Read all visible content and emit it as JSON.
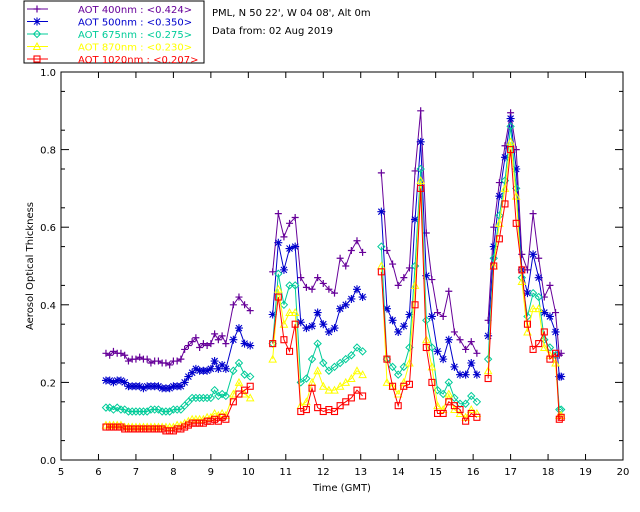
{
  "header": {
    "site_line": "PML, N 50 22', W 04 08', Alt 0m",
    "date_line": "Data from: 02 Aug 2019"
  },
  "colors": {
    "axis": "#000000",
    "legend_border": "#000000"
  },
  "chart_data": {
    "type": "line",
    "title": "",
    "xlabel": "Time (GMT)",
    "ylabel": "Aerosol Optical Thickness",
    "xlim": [
      5,
      20
    ],
    "ylim": [
      0.0,
      1.0
    ],
    "xticks": [
      "5",
      "6",
      "7",
      "8",
      "9",
      "10",
      "11",
      "12",
      "13",
      "14",
      "15",
      "16",
      "17",
      "18",
      "19",
      "20"
    ],
    "yticks": [
      "0.0",
      "0.2",
      "0.4",
      "0.6",
      "0.8",
      "1.0"
    ],
    "legend_position": "top-left",
    "x": [
      6.2,
      6.3,
      6.4,
      6.5,
      6.6,
      6.7,
      6.8,
      6.9,
      7.0,
      7.1,
      7.2,
      7.3,
      7.4,
      7.5,
      7.6,
      7.7,
      7.8,
      7.9,
      8.0,
      8.1,
      8.2,
      8.3,
      8.4,
      8.5,
      8.6,
      8.7,
      8.8,
      8.9,
      9.0,
      9.1,
      9.2,
      9.3,
      9.4,
      9.6,
      9.75,
      9.9,
      10.05,
      null,
      10.65,
      10.8,
      10.95,
      11.1,
      11.25,
      11.4,
      11.55,
      11.7,
      11.85,
      12.0,
      12.15,
      12.3,
      12.45,
      12.6,
      12.75,
      12.9,
      13.05,
      null,
      13.55,
      13.7,
      13.85,
      14.0,
      14.15,
      14.3,
      14.45,
      14.6,
      14.75,
      14.9,
      15.05,
      15.2,
      15.35,
      15.5,
      15.65,
      15.8,
      15.95,
      16.1,
      null,
      16.4,
      16.55,
      16.7,
      16.85,
      17.0,
      17.15,
      17.3,
      17.45,
      17.6,
      17.75,
      17.9,
      18.05,
      18.2,
      18.3,
      18.35
    ],
    "series": [
      {
        "name": "AOT  400nm",
        "label": "AOT  400nm : <0.424>",
        "color": "#660099",
        "marker": "plus",
        "values": [
          0.275,
          0.27,
          0.28,
          0.275,
          0.275,
          0.27,
          0.255,
          0.26,
          0.26,
          0.265,
          0.26,
          0.26,
          0.25,
          0.255,
          0.255,
          0.25,
          0.25,
          0.245,
          0.255,
          0.255,
          0.26,
          0.285,
          0.295,
          0.305,
          0.315,
          0.29,
          0.3,
          0.295,
          0.3,
          0.325,
          0.31,
          0.32,
          0.3,
          0.4,
          0.42,
          0.4,
          0.385,
          null,
          0.485,
          0.635,
          0.575,
          0.61,
          0.625,
          0.47,
          0.445,
          0.44,
          0.47,
          0.455,
          0.44,
          0.43,
          0.52,
          0.5,
          0.54,
          0.565,
          0.535,
          null,
          0.74,
          0.54,
          0.505,
          0.45,
          0.47,
          0.495,
          0.745,
          0.9,
          0.585,
          0.465,
          0.38,
          0.37,
          0.435,
          0.33,
          0.31,
          0.285,
          0.305,
          0.275,
          null,
          0.36,
          0.6,
          0.715,
          0.81,
          0.895,
          0.8,
          0.53,
          0.49,
          0.635,
          0.52,
          0.42,
          0.45,
          0.38,
          0.27,
          0.275
        ]
      },
      {
        "name": "AOT  500nm",
        "label": "AOT  500nm : <0.350>",
        "color": "#0000cc",
        "marker": "star",
        "values": [
          0.205,
          0.205,
          0.2,
          0.205,
          0.205,
          0.2,
          0.19,
          0.19,
          0.19,
          0.19,
          0.185,
          0.19,
          0.19,
          0.19,
          0.19,
          0.185,
          0.185,
          0.185,
          0.19,
          0.19,
          0.19,
          0.2,
          0.215,
          0.225,
          0.235,
          0.23,
          0.23,
          0.23,
          0.235,
          0.255,
          0.235,
          0.245,
          0.235,
          0.31,
          0.34,
          0.3,
          0.295,
          null,
          0.375,
          0.56,
          0.49,
          0.545,
          0.55,
          0.355,
          0.34,
          0.345,
          0.38,
          0.35,
          0.33,
          0.34,
          0.39,
          0.4,
          0.415,
          0.44,
          0.42,
          null,
          0.64,
          0.39,
          0.36,
          0.33,
          0.345,
          0.375,
          0.62,
          0.82,
          0.475,
          0.37,
          0.28,
          0.26,
          0.31,
          0.24,
          0.22,
          0.22,
          0.25,
          0.22,
          null,
          0.32,
          0.55,
          0.68,
          0.78,
          0.88,
          0.75,
          0.49,
          0.43,
          0.53,
          0.47,
          0.38,
          0.37,
          0.33,
          0.215,
          0.215
        ]
      },
      {
        "name": "AOT  675nm",
        "label": "AOT  675nm : <0.275>",
        "color": "#00cc99",
        "marker": "diamond",
        "values": [
          0.135,
          0.135,
          0.13,
          0.135,
          0.13,
          0.13,
          0.125,
          0.125,
          0.125,
          0.125,
          0.125,
          0.125,
          0.13,
          0.13,
          0.13,
          0.125,
          0.125,
          0.125,
          0.13,
          0.13,
          0.13,
          0.14,
          0.15,
          0.16,
          0.16,
          0.16,
          0.16,
          0.16,
          0.16,
          0.18,
          0.165,
          0.17,
          0.165,
          0.23,
          0.25,
          0.22,
          0.215,
          null,
          0.3,
          0.48,
          0.4,
          0.45,
          0.45,
          0.2,
          0.21,
          0.26,
          0.3,
          0.25,
          0.23,
          0.24,
          0.25,
          0.26,
          0.27,
          0.29,
          0.28,
          null,
          0.55,
          0.26,
          0.24,
          0.22,
          0.24,
          0.29,
          0.5,
          0.75,
          0.36,
          0.29,
          0.18,
          0.17,
          0.2,
          0.16,
          0.145,
          0.145,
          0.165,
          0.15,
          null,
          0.26,
          0.52,
          0.63,
          0.72,
          0.86,
          0.7,
          0.47,
          0.37,
          0.43,
          0.42,
          0.31,
          0.29,
          0.27,
          0.13,
          0.13
        ]
      },
      {
        "name": "AOT  870nm",
        "label": "AOT  870nm : <0.230>",
        "color": "#ffff00",
        "marker": "triangle",
        "values": [
          0.09,
          0.09,
          0.09,
          0.09,
          0.09,
          0.085,
          0.085,
          0.085,
          0.085,
          0.085,
          0.085,
          0.085,
          0.085,
          0.085,
          0.085,
          0.085,
          0.085,
          0.085,
          0.085,
          0.09,
          0.09,
          0.095,
          0.1,
          0.105,
          0.105,
          0.105,
          0.105,
          0.11,
          0.11,
          0.12,
          0.115,
          0.12,
          0.115,
          0.17,
          0.2,
          0.17,
          0.16,
          null,
          0.26,
          0.44,
          0.35,
          0.38,
          0.38,
          0.14,
          0.15,
          0.2,
          0.23,
          0.19,
          0.18,
          0.18,
          0.19,
          0.2,
          0.21,
          0.23,
          0.22,
          null,
          0.5,
          0.2,
          0.19,
          0.17,
          0.2,
          0.25,
          0.45,
          0.72,
          0.31,
          0.24,
          0.14,
          0.13,
          0.17,
          0.13,
          0.12,
          0.11,
          0.13,
          0.12,
          null,
          0.23,
          0.5,
          0.61,
          0.7,
          0.82,
          0.68,
          0.46,
          0.33,
          0.39,
          0.39,
          0.29,
          0.27,
          0.25,
          0.115,
          0.115
        ]
      },
      {
        "name": "AOT 1020nm",
        "label": "AOT 1020nm : <0.207>",
        "color": "#ff0000",
        "marker": "square",
        "values": [
          0.085,
          0.085,
          0.085,
          0.085,
          0.085,
          0.08,
          0.08,
          0.08,
          0.08,
          0.08,
          0.08,
          0.08,
          0.08,
          0.08,
          0.08,
          0.08,
          0.075,
          0.075,
          0.075,
          0.08,
          0.08,
          0.085,
          0.09,
          0.095,
          0.095,
          0.095,
          0.095,
          0.1,
          0.1,
          0.105,
          0.1,
          0.11,
          0.105,
          0.15,
          0.17,
          0.18,
          0.19,
          null,
          0.3,
          0.42,
          0.31,
          0.28,
          0.35,
          0.125,
          0.13,
          0.185,
          0.135,
          0.125,
          0.13,
          0.125,
          0.14,
          0.15,
          0.16,
          0.18,
          0.165,
          null,
          0.485,
          0.26,
          0.19,
          0.14,
          0.19,
          0.195,
          0.4,
          0.7,
          0.29,
          0.2,
          0.12,
          0.12,
          0.15,
          0.14,
          0.13,
          0.1,
          0.12,
          0.11,
          null,
          0.21,
          0.5,
          0.57,
          0.66,
          0.8,
          0.61,
          0.49,
          0.35,
          0.285,
          0.3,
          0.33,
          0.26,
          0.275,
          0.105,
          0.11
        ]
      }
    ]
  }
}
